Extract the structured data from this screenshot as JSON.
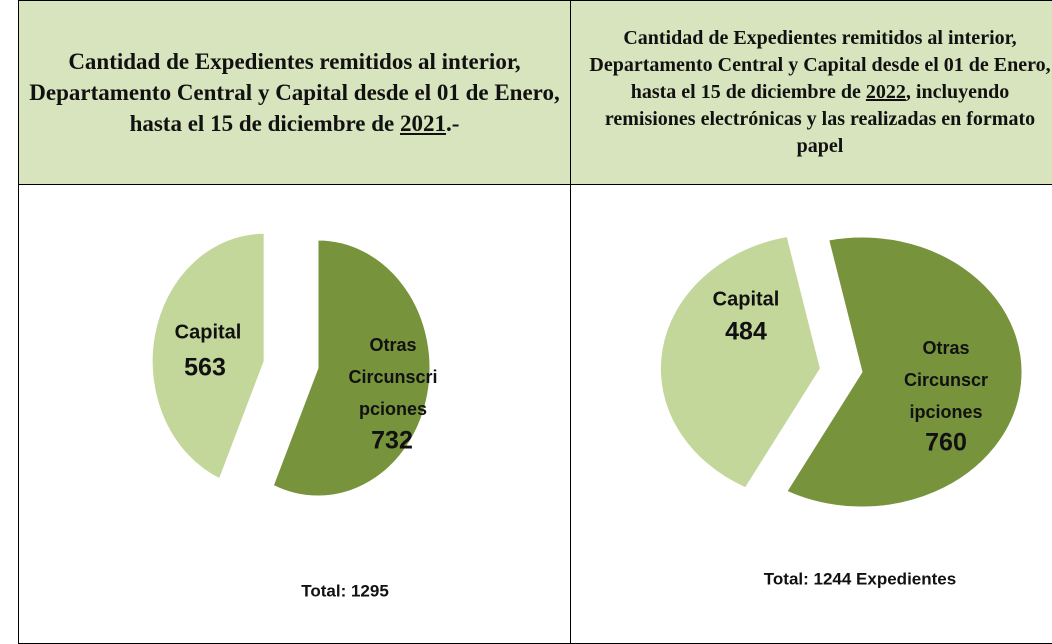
{
  "chart_data": [
    {
      "type": "pie",
      "title": "Cantidad de Expedientes remitidos al interior, Departamento Central y Capital desde el 01 de Enero, hasta el 15 de diciembre de ",
      "title_year": "2021",
      "title_end": ".-",
      "categories": [
        [
          "Capital"
        ],
        [
          "Otras",
          "Circunscri",
          "pciones"
        ]
      ],
      "values": [
        563,
        732
      ],
      "colors": [
        "#c4d79b",
        "#77933c"
      ],
      "total": "Total: 1295"
    },
    {
      "type": "pie",
      "title": "Cantidad de Expedientes remitidos al interior, Departamento Central y Capital desde el 01 de Enero, hasta el 15 de diciembre de ",
      "title_year": "2022",
      "title_end": ", incluyendo remisiones electrónicas y las realizadas en formato papel",
      "categories": [
        [
          "Capital"
        ],
        [
          "Otras",
          "Circunscr",
          "ipciones"
        ]
      ],
      "values": [
        484,
        760
      ],
      "colors": [
        "#c4d79b",
        "#77933c"
      ],
      "total": "Total: 1244 Expedientes"
    }
  ]
}
